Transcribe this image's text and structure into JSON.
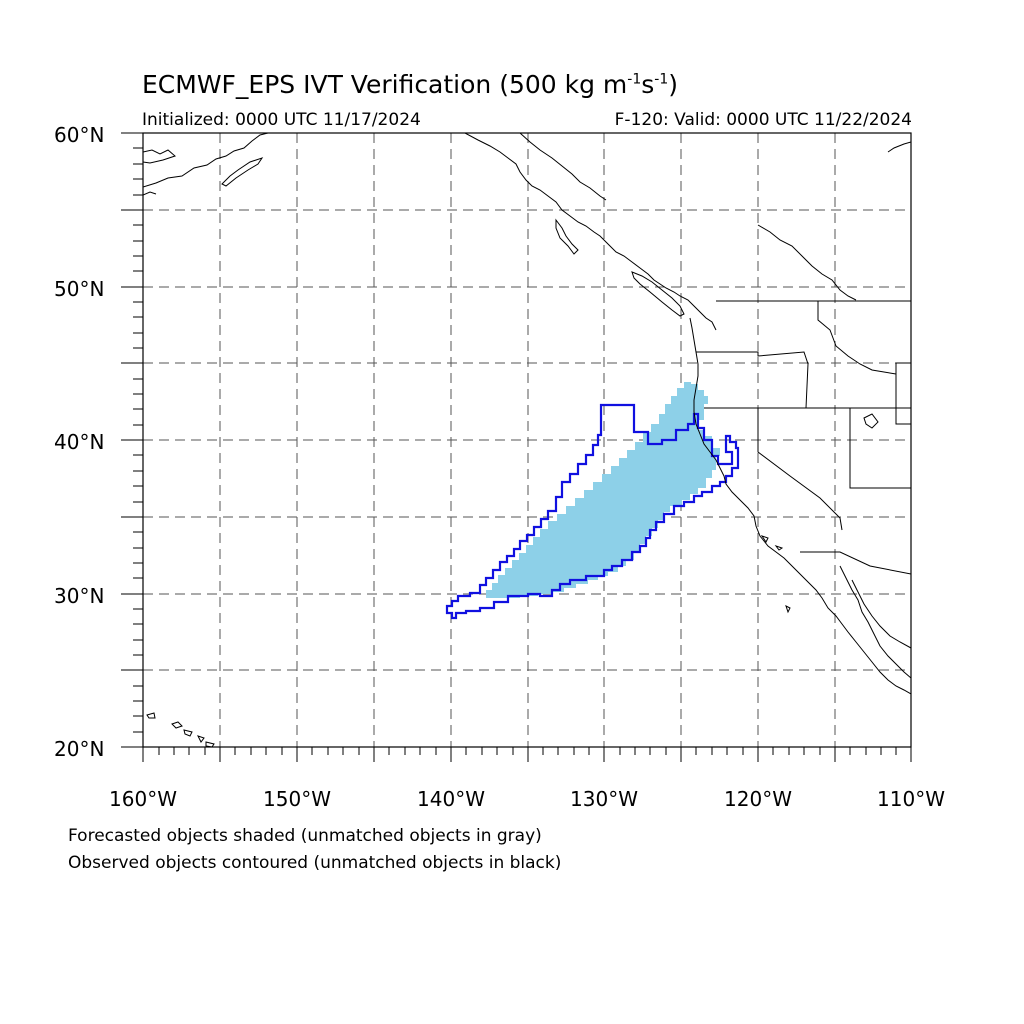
{
  "header": {
    "title_main": "ECMWF_EPS IVT Verification (500 kg m",
    "title_sup1": "-1",
    "title_mid": "s",
    "title_sup2": "-1",
    "title_end": ")",
    "initialized": "Initialized: 0000 UTC 11/17/2024",
    "valid": "F-120: Valid: 0000 UTC 11/22/2024"
  },
  "map": {
    "lat_labels": [
      "60°N",
      "50°N",
      "40°N",
      "30°N",
      "20°N"
    ],
    "lon_labels": [
      "160°W",
      "150°W",
      "140°W",
      "130°W",
      "120°W",
      "110°W"
    ],
    "lon_range": [
      -160,
      -110
    ],
    "lat_range": [
      20,
      60
    ],
    "grid_lines": "dashed",
    "colors": {
      "forecast_fill": "#8dd0e8",
      "observed_contour": "#1010e0",
      "coastline": "#000000"
    }
  },
  "footer": {
    "line1": "Forecasted objects shaded (unmatched objects in gray)",
    "line2": "Observed objects contoured (unmatched objects in black)"
  }
}
